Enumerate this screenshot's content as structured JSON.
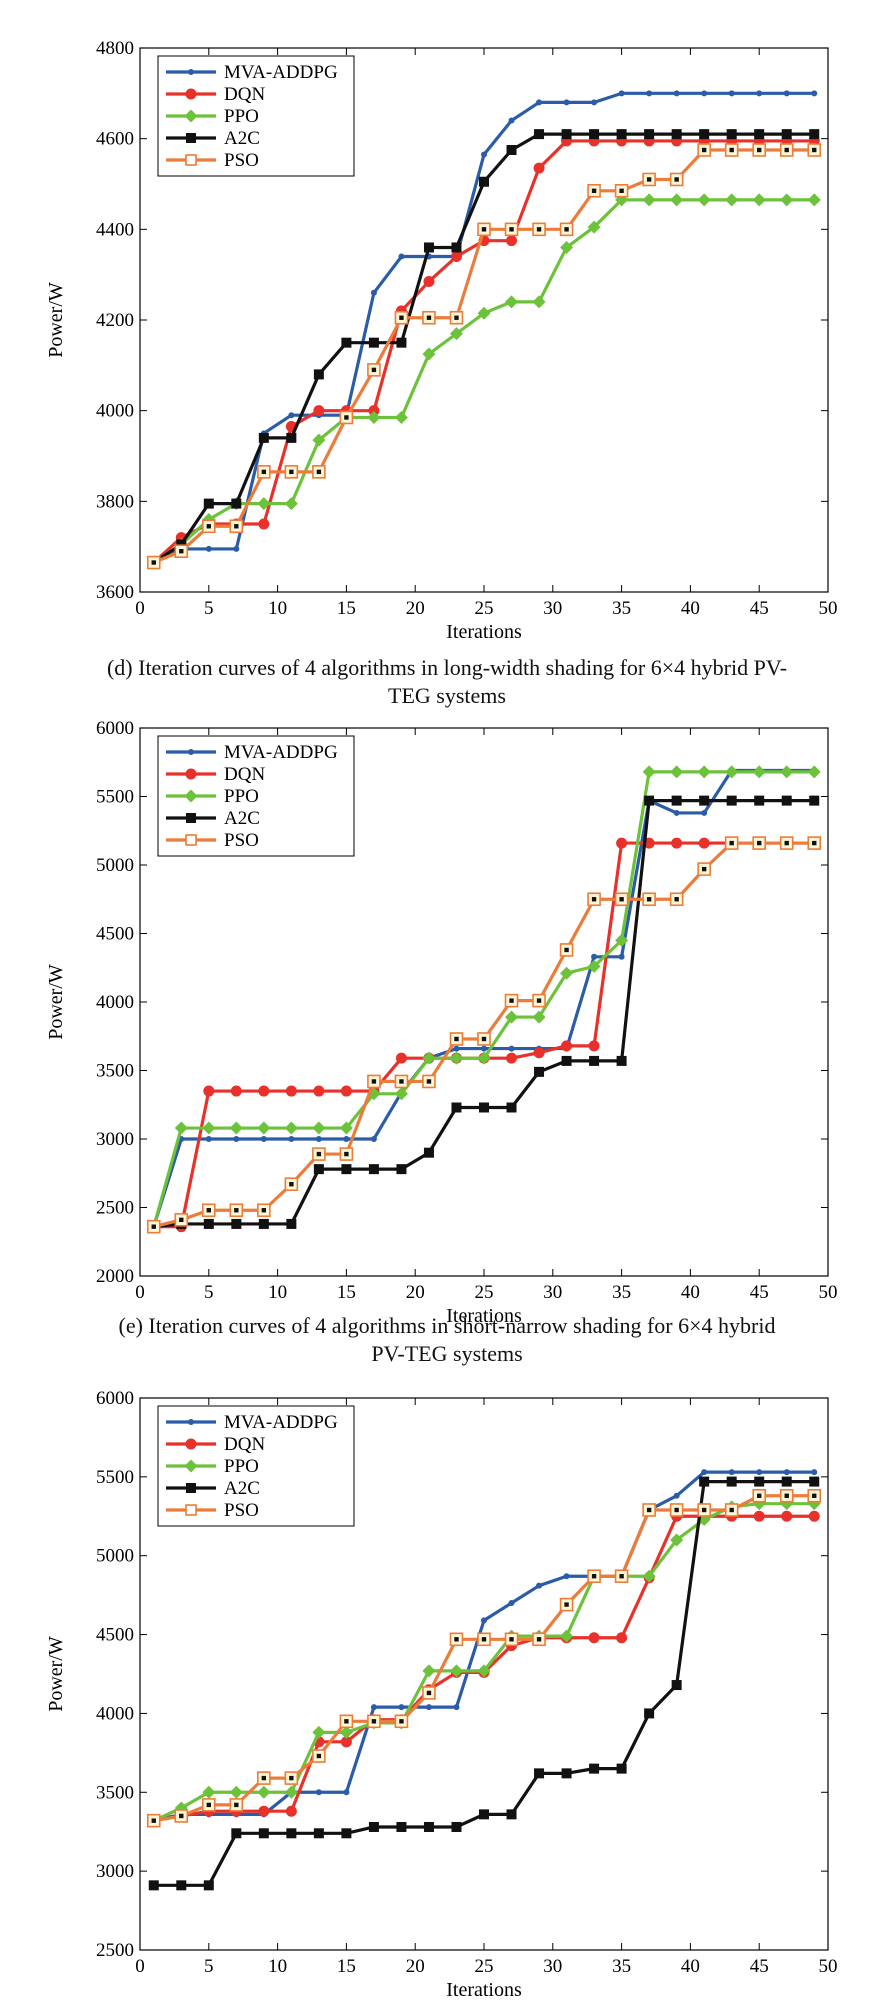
{
  "chart_data": [
    {
      "type": "line",
      "title": "",
      "xlabel": "Iterations",
      "ylabel": "Power/W",
      "xlim": [
        0,
        50
      ],
      "ylim": [
        3600,
        4800
      ],
      "xticks": [
        0,
        5,
        10,
        15,
        20,
        25,
        30,
        35,
        40,
        45,
        50
      ],
      "yticks": [
        3600,
        3800,
        4000,
        4200,
        4400,
        4600,
        4800
      ],
      "grid": false,
      "legend_position": "top-left",
      "x": [
        1,
        3,
        5,
        7,
        9,
        11,
        13,
        15,
        17,
        19,
        21,
        23,
        25,
        27,
        29,
        31,
        33,
        35,
        37,
        39,
        41,
        43,
        45,
        47,
        49
      ],
      "series": [
        {
          "name": "MVA-ADDPG",
          "color": "#2a5ca8",
          "marker": "dot",
          "values": [
            3665,
            3695,
            3695,
            3695,
            3950,
            3990,
            3990,
            3990,
            4260,
            4340,
            4340,
            4340,
            4565,
            4640,
            4680,
            4680,
            4680,
            4700,
            4700,
            4700,
            4700,
            4700,
            4700,
            4700,
            4700
          ]
        },
        {
          "name": "DQN",
          "color": "#e8312a",
          "marker": "circle",
          "values": [
            3665,
            3720,
            3750,
            3750,
            3750,
            3965,
            4000,
            4000,
            4000,
            4220,
            4285,
            4340,
            4375,
            4375,
            4535,
            4595,
            4595,
            4595,
            4595,
            4595,
            4595,
            4595,
            4595,
            4595,
            4595
          ]
        },
        {
          "name": "PPO",
          "color": "#6cc23a",
          "marker": "diamond",
          "values": [
            3665,
            3705,
            3760,
            3795,
            3795,
            3795,
            3935,
            3985,
            3985,
            3985,
            4125,
            4170,
            4215,
            4240,
            4240,
            4360,
            4405,
            4465,
            4465,
            4465,
            4465,
            4465,
            4465,
            4465,
            4465
          ]
        },
        {
          "name": "A2C",
          "color": "#111111",
          "marker": "square",
          "values": [
            3665,
            3705,
            3795,
            3795,
            3940,
            3940,
            4080,
            4150,
            4150,
            4150,
            4360,
            4360,
            4505,
            4575,
            4610,
            4610,
            4610,
            4610,
            4610,
            4610,
            4610,
            4610,
            4610,
            4610,
            4610
          ]
        },
        {
          "name": "PSO",
          "color": "#ec7c3a",
          "marker": "hollow-square",
          "values": [
            3665,
            3690,
            3745,
            3745,
            3865,
            3865,
            3865,
            3985,
            4090,
            4205,
            4205,
            4205,
            4400,
            4400,
            4400,
            4400,
            4485,
            4485,
            4510,
            4510,
            4575,
            4575,
            4575,
            4575,
            4575
          ]
        }
      ],
      "caption_lines": [
        "(d)  Iteration curves of 4 algorithms in long-width shading for 6×4 hybrid PV-",
        "TEG systems"
      ]
    },
    {
      "type": "line",
      "title": "",
      "xlabel": "Iterations",
      "ylabel": "Power/W",
      "xlim": [
        0,
        50
      ],
      "ylim": [
        2000,
        6000
      ],
      "xticks": [
        0,
        5,
        10,
        15,
        20,
        25,
        30,
        35,
        40,
        45,
        50
      ],
      "yticks": [
        2000,
        2500,
        3000,
        3500,
        4000,
        4500,
        5000,
        5500,
        6000
      ],
      "grid": false,
      "legend_position": "top-left",
      "x": [
        1,
        3,
        5,
        7,
        9,
        11,
        13,
        15,
        17,
        19,
        21,
        23,
        25,
        27,
        29,
        31,
        33,
        35,
        37,
        39,
        41,
        43,
        45,
        47,
        49
      ],
      "series": [
        {
          "name": "MVA-ADDPG",
          "color": "#2a5ca8",
          "marker": "dot",
          "values": [
            2360,
            3000,
            3000,
            3000,
            3000,
            3000,
            3000,
            3000,
            3000,
            3340,
            3590,
            3660,
            3660,
            3660,
            3660,
            3660,
            4330,
            4330,
            5470,
            5380,
            5380,
            5690,
            5690,
            5690,
            5690
          ]
        },
        {
          "name": "DQN",
          "color": "#e8312a",
          "marker": "circle",
          "values": [
            2360,
            2360,
            3350,
            3350,
            3350,
            3350,
            3350,
            3350,
            3350,
            3590,
            3590,
            3590,
            3590,
            3590,
            3630,
            3680,
            3680,
            5160,
            5160,
            5160,
            5160,
            5160,
            5160,
            5160,
            5160
          ]
        },
        {
          "name": "PPO",
          "color": "#6cc23a",
          "marker": "diamond",
          "values": [
            2360,
            3080,
            3080,
            3080,
            3080,
            3080,
            3080,
            3080,
            3330,
            3330,
            3590,
            3590,
            3590,
            3890,
            3890,
            4210,
            4260,
            4450,
            5680,
            5680,
            5680,
            5680,
            5680,
            5680,
            5680
          ]
        },
        {
          "name": "A2C",
          "color": "#111111",
          "marker": "square",
          "values": [
            2360,
            2380,
            2380,
            2380,
            2380,
            2380,
            2780,
            2780,
            2780,
            2780,
            2900,
            3230,
            3230,
            3230,
            3490,
            3570,
            3570,
            3570,
            5470,
            5470,
            5470,
            5470,
            5470,
            5470,
            5470
          ]
        },
        {
          "name": "PSO",
          "color": "#ec7c3a",
          "marker": "hollow-square",
          "values": [
            2360,
            2410,
            2480,
            2480,
            2480,
            2670,
            2890,
            2890,
            3420,
            3420,
            3420,
            3730,
            3730,
            4010,
            4010,
            4380,
            4750,
            4750,
            4750,
            4750,
            4970,
            5160,
            5160,
            5160,
            5160
          ]
        }
      ],
      "caption_lines": [
        "(e)  Iteration curves of 4 algorithms in short-narrow shading for 6×4 hybrid",
        "PV-TEG systems"
      ]
    },
    {
      "type": "line",
      "title": "",
      "xlabel": "Iterations",
      "ylabel": "Power/W",
      "xlim": [
        0,
        50
      ],
      "ylim": [
        2500,
        6000
      ],
      "xticks": [
        0,
        5,
        10,
        15,
        20,
        25,
        30,
        35,
        40,
        45,
        50
      ],
      "yticks": [
        2500,
        3000,
        3500,
        4000,
        4500,
        5000,
        5500,
        6000
      ],
      "grid": false,
      "legend_position": "top-left",
      "x": [
        1,
        3,
        5,
        7,
        9,
        11,
        13,
        15,
        17,
        19,
        21,
        23,
        25,
        27,
        29,
        31,
        33,
        35,
        37,
        39,
        41,
        43,
        45,
        47,
        49
      ],
      "series": [
        {
          "name": "MVA-ADDPG",
          "color": "#2a5ca8",
          "marker": "dot",
          "values": [
            3320,
            3360,
            3360,
            3360,
            3360,
            3500,
            3500,
            3500,
            4040,
            4040,
            4040,
            4040,
            4590,
            4700,
            4810,
            4870,
            4870,
            4870,
            5290,
            5380,
            5530,
            5530,
            5530,
            5530,
            5530
          ]
        },
        {
          "name": "DQN",
          "color": "#e8312a",
          "marker": "circle",
          "values": [
            3320,
            3350,
            3380,
            3380,
            3380,
            3380,
            3820,
            3820,
            3960,
            3960,
            4150,
            4260,
            4260,
            4430,
            4480,
            4480,
            4480,
            4480,
            4860,
            5250,
            5250,
            5250,
            5250,
            5250,
            5250
          ]
        },
        {
          "name": "PPO",
          "color": "#6cc23a",
          "marker": "diamond",
          "values": [
            3320,
            3400,
            3500,
            3500,
            3500,
            3500,
            3880,
            3880,
            3940,
            3940,
            4270,
            4270,
            4270,
            4490,
            4490,
            4490,
            4870,
            4870,
            4870,
            5100,
            5230,
            5310,
            5330,
            5330,
            5330
          ]
        },
        {
          "name": "A2C",
          "color": "#111111",
          "marker": "square",
          "values": [
            2910,
            2910,
            2910,
            3240,
            3240,
            3240,
            3240,
            3240,
            3280,
            3280,
            3280,
            3280,
            3360,
            3360,
            3620,
            3620,
            3650,
            3650,
            4000,
            4180,
            5470,
            5470,
            5470,
            5470,
            5470
          ]
        },
        {
          "name": "PSO",
          "color": "#ec7c3a",
          "marker": "hollow-square",
          "values": [
            3320,
            3350,
            3420,
            3420,
            3590,
            3590,
            3730,
            3950,
            3950,
            3950,
            4130,
            4470,
            4470,
            4470,
            4470,
            4690,
            4870,
            4870,
            5290,
            5290,
            5290,
            5290,
            5380,
            5380,
            5380
          ]
        }
      ]
    }
  ]
}
